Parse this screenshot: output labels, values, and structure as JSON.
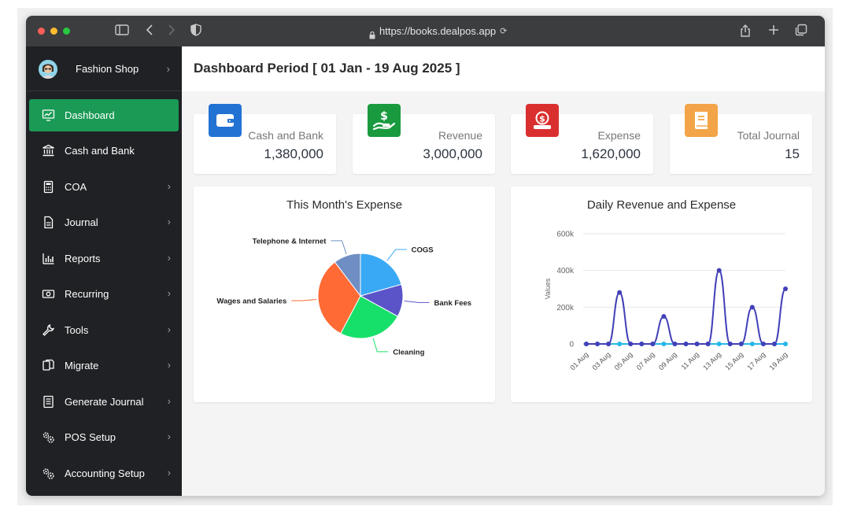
{
  "browser": {
    "url": "https://books.dealpos.app"
  },
  "sidebar": {
    "shop_name": "Fashion Shop",
    "items": [
      {
        "label": "Dashboard",
        "icon": "monitor-chart-icon",
        "active": true,
        "has_submenu": false
      },
      {
        "label": "Cash and Bank",
        "icon": "bank-icon",
        "active": false,
        "has_submenu": false
      },
      {
        "label": "COA",
        "icon": "calculator-icon",
        "active": false,
        "has_submenu": true
      },
      {
        "label": "Journal",
        "icon": "document-icon",
        "active": false,
        "has_submenu": true
      },
      {
        "label": "Reports",
        "icon": "bar-chart-icon",
        "active": false,
        "has_submenu": true
      },
      {
        "label": "Recurring",
        "icon": "money-bill-icon",
        "active": false,
        "has_submenu": true
      },
      {
        "label": "Tools",
        "icon": "wrench-icon",
        "active": false,
        "has_submenu": true
      },
      {
        "label": "Migrate",
        "icon": "copy-icon",
        "active": false,
        "has_submenu": true
      },
      {
        "label": "Generate Journal",
        "icon": "journal-list-icon",
        "active": false,
        "has_submenu": true
      },
      {
        "label": "POS Setup",
        "icon": "gears-icon",
        "active": false,
        "has_submenu": true
      },
      {
        "label": "Accounting Setup",
        "icon": "gears-icon",
        "active": false,
        "has_submenu": true
      }
    ]
  },
  "header": {
    "title": "Dashboard Period [ 01 Jan - 19 Aug 2025 ]"
  },
  "cards": [
    {
      "label": "Cash and Bank",
      "value": "1,380,000",
      "icon": "wallet-icon",
      "color": "#2272d4"
    },
    {
      "label": "Revenue",
      "value": "3,000,000",
      "icon": "hand-dollar-icon",
      "color": "#1a9a3f"
    },
    {
      "label": "Expense",
      "value": "1,620,000",
      "icon": "dollar-bill-icon",
      "color": "#d9302f"
    },
    {
      "label": "Total Journal",
      "value": "15",
      "icon": "book-icon",
      "color": "#f3a448"
    }
  ],
  "chart_data": [
    {
      "type": "pie",
      "title": "This Month's Expense",
      "slices": [
        {
          "label": "COGS",
          "value": 20,
          "color": "#3aa9f5"
        },
        {
          "label": "Bank Fees",
          "value": 12,
          "color": "#5b54c9"
        },
        {
          "label": "Cleaning",
          "value": 24,
          "color": "#17e06a"
        },
        {
          "label": "Wages and Salaries",
          "value": 31,
          "color": "#ff6a35"
        },
        {
          "label": "Telephone & Internet",
          "value": 10,
          "color": "#6f8fc4"
        }
      ]
    },
    {
      "type": "line",
      "title": "Daily Revenue and Expense",
      "ylabel": "Values",
      "ylim": [
        0,
        600000
      ],
      "yticks": [
        "0",
        "200k",
        "400k",
        "600k"
      ],
      "ytick_values": [
        0,
        200000,
        400000,
        600000
      ],
      "xtick_labels": [
        "01 Aug",
        "03 Aug",
        "05 Aug",
        "07 Aug",
        "09 Aug",
        "11 Aug",
        "13 Aug",
        "15 Aug",
        "17 Aug",
        "19 Aug"
      ],
      "x": [
        "01 Aug",
        "02 Aug",
        "03 Aug",
        "04 Aug",
        "05 Aug",
        "06 Aug",
        "07 Aug",
        "08 Aug",
        "09 Aug",
        "10 Aug",
        "11 Aug",
        "12 Aug",
        "13 Aug",
        "14 Aug",
        "15 Aug",
        "16 Aug",
        "17 Aug",
        "18 Aug",
        "19 Aug"
      ],
      "series": [
        {
          "color": "#4340b8",
          "values": [
            0,
            0,
            0,
            280000,
            0,
            0,
            0,
            150000,
            0,
            0,
            0,
            0,
            400000,
            0,
            0,
            200000,
            0,
            0,
            300000
          ]
        },
        {
          "color": "#27b8e8",
          "values": [
            0,
            0,
            0,
            0,
            0,
            0,
            0,
            0,
            0,
            0,
            0,
            0,
            0,
            0,
            0,
            0,
            0,
            0,
            0
          ]
        }
      ]
    }
  ]
}
